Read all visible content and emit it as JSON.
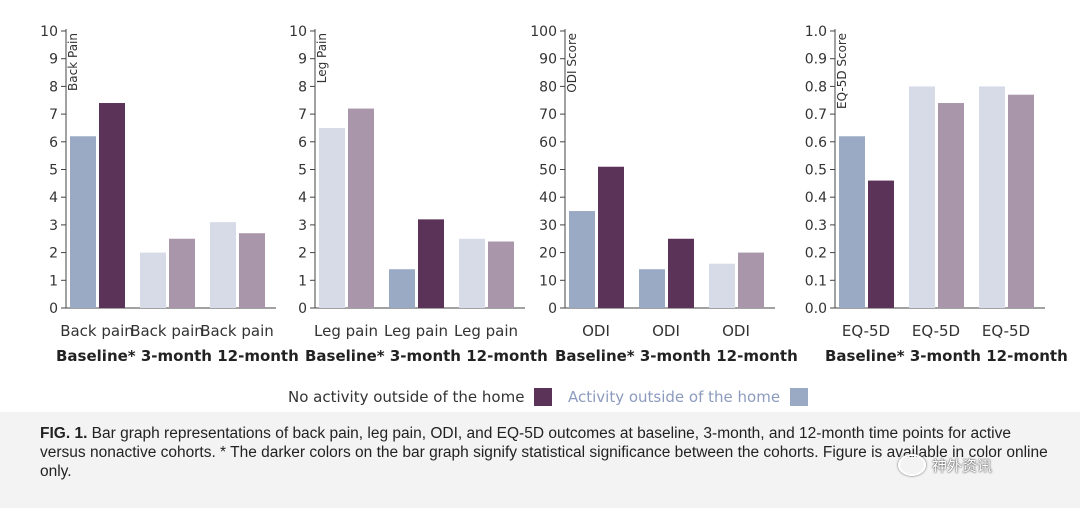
{
  "chart_data": [
    {
      "type": "bar",
      "ylabel": "Back Pain",
      "ylim": [
        0,
        10
      ],
      "yticks": [
        "0",
        "1",
        "2",
        "3",
        "4",
        "5",
        "6",
        "7",
        "8",
        "9",
        "10"
      ],
      "categories": [
        "Back pain",
        "Back pain",
        "Back pain"
      ],
      "group_labels": [
        "Baseline*",
        "3-month",
        "12-month"
      ],
      "series": [
        {
          "name": "Activity outside of the home",
          "values": [
            6.2,
            2.0,
            3.1
          ],
          "colors": [
            "#9aa9c4",
            "#d7dbe8",
            "#d7dbe8"
          ]
        },
        {
          "name": "No activity outside of the home",
          "values": [
            7.4,
            2.5,
            2.7
          ],
          "colors": [
            "#5b3358",
            "#a996ab",
            "#a996ab"
          ]
        }
      ]
    },
    {
      "type": "bar",
      "ylabel": "Leg Pain",
      "ylim": [
        0,
        10
      ],
      "yticks": [
        "0",
        "1",
        "2",
        "3",
        "4",
        "5",
        "6",
        "7",
        "8",
        "9",
        "10"
      ],
      "categories": [
        "Leg pain",
        "Leg pain",
        "Leg pain"
      ],
      "group_labels": [
        "Baseline*",
        "3-month",
        "12-month"
      ],
      "series": [
        {
          "name": "Activity outside of the home",
          "values": [
            6.5,
            1.4,
            2.5
          ],
          "colors": [
            "#d7dbe8",
            "#9aa9c4",
            "#d7dbe8"
          ]
        },
        {
          "name": "No activity outside of the home",
          "values": [
            7.2,
            3.2,
            2.4
          ],
          "colors": [
            "#a996ab",
            "#5b3358",
            "#a996ab"
          ]
        }
      ]
    },
    {
      "type": "bar",
      "ylabel": "ODI Score",
      "ylim": [
        0,
        100
      ],
      "yticks": [
        "0",
        "10",
        "20",
        "30",
        "40",
        "50",
        "60",
        "70",
        "80",
        "90",
        "100"
      ],
      "categories": [
        "ODI",
        "ODI",
        "ODI"
      ],
      "group_labels": [
        "Baseline*",
        "3-month",
        "12-month"
      ],
      "series": [
        {
          "name": "Activity outside of the home",
          "values": [
            35,
            14,
            16
          ],
          "colors": [
            "#9aa9c4",
            "#9aa9c4",
            "#d7dbe8"
          ]
        },
        {
          "name": "No activity outside of the home",
          "values": [
            51,
            25,
            20
          ],
          "colors": [
            "#5b3358",
            "#5b3358",
            "#a996ab"
          ]
        }
      ]
    },
    {
      "type": "bar",
      "ylabel": "EQ-5D Score",
      "ylim": [
        0,
        1
      ],
      "yticks": [
        "0.0",
        "0.1",
        "0.2",
        "0.3",
        "0.4",
        "0.5",
        "0.6",
        "0.7",
        "0.8",
        "0.9",
        "1.0"
      ],
      "categories": [
        "EQ-5D",
        "EQ-5D",
        "EQ-5D"
      ],
      "group_labels": [
        "Baseline*",
        "3-month",
        "12-month"
      ],
      "series": [
        {
          "name": "Activity outside of the home",
          "values": [
            0.62,
            0.8,
            0.8
          ],
          "colors": [
            "#9aa9c4",
            "#d7dbe8",
            "#d7dbe8"
          ]
        },
        {
          "name": "No activity outside of the home",
          "values": [
            0.46,
            0.74,
            0.77
          ],
          "colors": [
            "#5b3358",
            "#a996ab",
            "#a996ab"
          ]
        }
      ]
    }
  ],
  "legend": {
    "no_activity_label": "No activity outside of the home",
    "no_activity_color": "#5b3358",
    "activity_label": "Activity outside of the home",
    "activity_color": "#9aa9c4"
  },
  "caption": {
    "label": "FIG. 1.",
    "text": " Bar graph representations of back pain, leg pain, ODI, and EQ-5D outcomes at baseline, 3-month, and 12-month time points for active versus nonactive cohorts. * The darker colors on the bar graph signify statistical significance between the cohorts. Figure is available in color online only."
  },
  "watermark": {
    "text": "神外资讯",
    "icon": "wechat-icon"
  }
}
